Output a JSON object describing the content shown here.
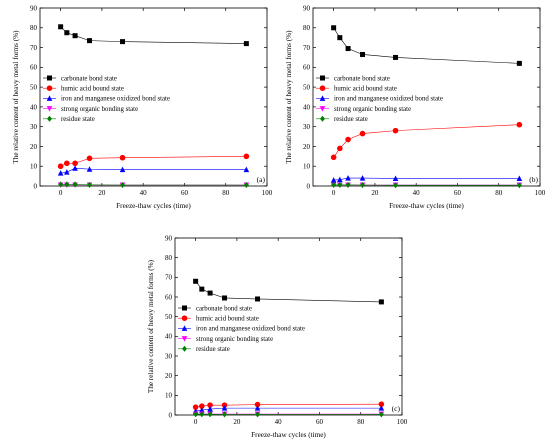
{
  "chart_data": [
    {
      "type": "line",
      "panel_label": "(a)",
      "xlabel": "Freeze-thaw cycles (time)",
      "ylabel": "The relative content of heavy metal forms (%)",
      "xlim": [
        -10,
        100
      ],
      "ylim": [
        0,
        90
      ],
      "xticks": [
        0,
        20,
        40,
        60,
        80,
        100
      ],
      "yticks": [
        0,
        10,
        20,
        30,
        40,
        50,
        60,
        70,
        80,
        90
      ],
      "x": [
        0,
        3,
        7,
        14,
        30,
        90
      ],
      "series": [
        {
          "name": "carbonate bond state",
          "values": [
            80.5,
            77.5,
            76,
            73.5,
            73,
            72
          ],
          "color": "#000000",
          "marker": "square"
        },
        {
          "name": "humic acid bound state",
          "values": [
            10,
            11.5,
            11.5,
            14,
            14.3,
            15
          ],
          "color": "#ff0000",
          "marker": "circle"
        },
        {
          "name": "iron and manganese oxidized bond state",
          "values": [
            6.5,
            7,
            9,
            8.5,
            8.3,
            8.3
          ],
          "color": "#0000ff",
          "marker": "triangle-up"
        },
        {
          "name": "strong organic bonding state",
          "values": [
            0.5,
            0.5,
            0.5,
            0.5,
            0.5,
            0.5
          ],
          "color": "#ff00ff",
          "marker": "triangle-down"
        },
        {
          "name": "residue state",
          "values": [
            0.8,
            0.8,
            0.8,
            0.6,
            0.5,
            0.5
          ],
          "color": "#008000",
          "marker": "diamond"
        }
      ],
      "legend_position": "middle-left",
      "grid": false
    },
    {
      "type": "line",
      "panel_label": "(b)",
      "xlabel": "Freeze-thaw cycles (time)",
      "ylabel": "The relative content of heavy metal forms (%)",
      "xlim": [
        -10,
        100
      ],
      "ylim": [
        0,
        90
      ],
      "xticks": [
        0,
        20,
        40,
        60,
        80,
        100
      ],
      "yticks": [
        0,
        10,
        20,
        30,
        40,
        50,
        60,
        70,
        80,
        90
      ],
      "x": [
        0,
        3,
        7,
        14,
        30,
        90
      ],
      "series": [
        {
          "name": "carbonate bond state",
          "values": [
            80,
            75,
            69.5,
            66.5,
            65,
            62
          ],
          "color": "#000000",
          "marker": "square"
        },
        {
          "name": "humic acid bound state",
          "values": [
            14.5,
            19,
            23.5,
            26.5,
            28,
            31
          ],
          "color": "#ff0000",
          "marker": "circle"
        },
        {
          "name": "iron and manganese oxidized bond state",
          "values": [
            3,
            3.2,
            4,
            4,
            3.8,
            3.8
          ],
          "color": "#0000ff",
          "marker": "triangle-up"
        },
        {
          "name": "strong organic bonding state",
          "values": [
            0.5,
            0.5,
            0.5,
            0.5,
            0.5,
            0.5
          ],
          "color": "#ff00ff",
          "marker": "triangle-down"
        },
        {
          "name": "residue state",
          "values": [
            0.6,
            0.6,
            0.6,
            0.5,
            0.4,
            0.4
          ],
          "color": "#008000",
          "marker": "diamond"
        }
      ],
      "legend_position": "middle-left",
      "grid": false
    },
    {
      "type": "line",
      "panel_label": "(c)",
      "xlabel": "Freeze-thaw cycles (time)",
      "ylabel": "The relative content of heavy metal forms (%)",
      "xlim": [
        -10,
        100
      ],
      "ylim": [
        0,
        90
      ],
      "xticks": [
        0,
        20,
        40,
        60,
        80,
        100
      ],
      "yticks": [
        0,
        10,
        20,
        30,
        40,
        50,
        60,
        70,
        80,
        90
      ],
      "x": [
        0,
        3,
        7,
        14,
        30,
        90
      ],
      "series": [
        {
          "name": "carbonate bond state",
          "values": [
            68,
            64,
            62,
            59.5,
            59,
            57.5
          ],
          "color": "#000000",
          "marker": "square"
        },
        {
          "name": "humic acid bound state",
          "values": [
            4,
            4.5,
            5,
            5,
            5.3,
            5.5
          ],
          "color": "#ff0000",
          "marker": "circle"
        },
        {
          "name": "iron and manganese oxidized bond state",
          "values": [
            2,
            2.5,
            3,
            3.5,
            3.5,
            3.5
          ],
          "color": "#0000ff",
          "marker": "triangle-up"
        },
        {
          "name": "strong organic bonding state",
          "values": [
            0.5,
            0.5,
            0.5,
            0.5,
            0.5,
            0.5
          ],
          "color": "#ff00ff",
          "marker": "triangle-down"
        },
        {
          "name": "residue state",
          "values": [
            0.4,
            0.4,
            0.4,
            0.3,
            0.3,
            0.3
          ],
          "color": "#008000",
          "marker": "diamond"
        }
      ],
      "legend_position": "middle-left",
      "grid": false
    }
  ]
}
